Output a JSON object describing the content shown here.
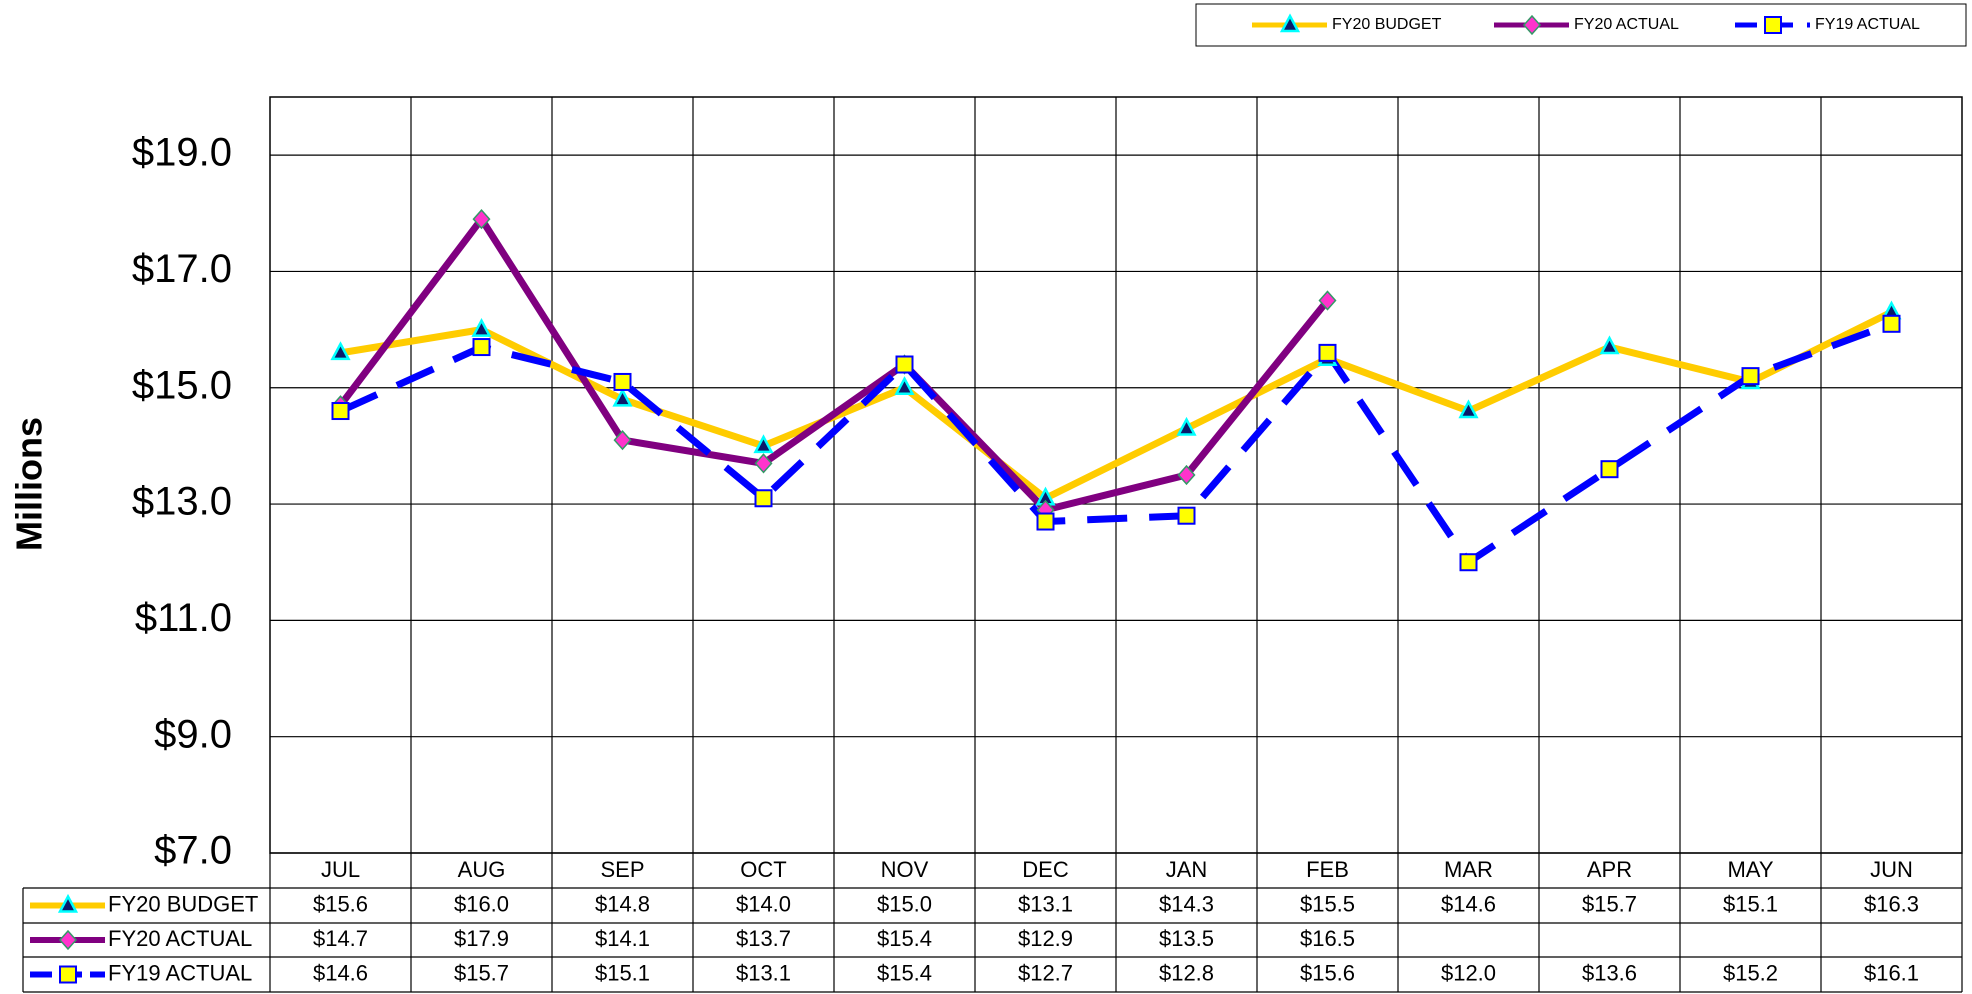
{
  "chart_data": {
    "type": "line",
    "y_label": "Millions",
    "categories": [
      "JUL",
      "AUG",
      "SEP",
      "OCT",
      "NOV",
      "DEC",
      "JAN",
      "FEB",
      "MAR",
      "APR",
      "MAY",
      "JUN"
    ],
    "series": [
      {
        "name": "FY20 BUDGET",
        "color": "#ffcc00",
        "values": [
          15.6,
          16.0,
          14.8,
          14.0,
          15.0,
          13.1,
          14.3,
          15.5,
          14.6,
          15.7,
          15.1,
          16.3
        ],
        "value_labels": [
          "$15.6",
          "$16.0",
          "$14.8",
          "$14.0",
          "$15.0",
          "$13.1",
          "$14.3",
          "$15.5",
          "$14.6",
          "$15.7",
          "$15.1",
          "$16.3"
        ]
      },
      {
        "name": "FY20 ACTUAL",
        "color": "#800080",
        "values": [
          14.7,
          17.9,
          14.1,
          13.7,
          15.4,
          12.9,
          13.5,
          16.5,
          null,
          null,
          null,
          null
        ],
        "value_labels": [
          "$14.7",
          "$17.9",
          "$14.1",
          "$13.7",
          "$15.4",
          "$12.9",
          "$13.5",
          "$16.5",
          null,
          null,
          null,
          null
        ]
      },
      {
        "name": "FY19 ACTUAL",
        "color": "#0000ff",
        "dashed": true,
        "values": [
          14.6,
          15.7,
          15.1,
          13.1,
          15.4,
          12.7,
          12.8,
          15.6,
          12.0,
          13.6,
          15.2,
          16.1
        ],
        "value_labels": [
          "$14.6",
          "$15.7",
          "$15.1",
          "$13.1",
          "$15.4",
          "$12.7",
          "$12.8",
          "$15.6",
          "$12.0",
          "$13.6",
          "$15.2",
          "$16.1"
        ]
      }
    ],
    "ylim": [
      7,
      20
    ],
    "yticks": [
      {
        "value": 7,
        "label": "$7.0"
      },
      {
        "value": 9,
        "label": "$9.0"
      },
      {
        "value": 11,
        "label": "$11.0"
      },
      {
        "value": 13,
        "label": "$13.0"
      },
      {
        "value": 15,
        "label": "$15.0"
      },
      {
        "value": 17,
        "label": "$17.0"
      },
      {
        "value": 19,
        "label": "$19.0"
      }
    ],
    "grid": true,
    "legend": "top-right"
  }
}
